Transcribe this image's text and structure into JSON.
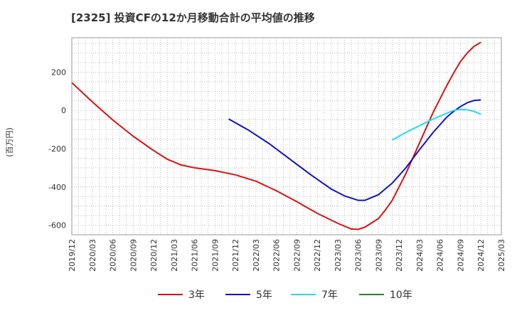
{
  "chart_data": {
    "type": "line",
    "title": "[2325]  投資CFの12か月移動合計の平均値の推移",
    "ylabel": "(百万円)",
    "xlabel": "",
    "ylim": [
      -650,
      380
    ],
    "xlim": [
      "2019/12",
      "2025/03"
    ],
    "yticks": [
      200,
      0,
      -200,
      -400,
      -600
    ],
    "xticks": [
      "2019/12",
      "2020/03",
      "2020/06",
      "2020/09",
      "2020/12",
      "2021/03",
      "2021/06",
      "2021/09",
      "2021/12",
      "2022/03",
      "2022/06",
      "2022/09",
      "2022/12",
      "2023/03",
      "2023/06",
      "2023/09",
      "2023/12",
      "2024/03",
      "2024/06",
      "2024/09",
      "2024/12",
      "2025/03"
    ],
    "grid": true,
    "legend_position": "bottom",
    "series": [
      {
        "name": "3年",
        "color": "#dd1111",
        "x": [
          "2019/12",
          "2020/03",
          "2020/06",
          "2020/09",
          "2020/12",
          "2021/02",
          "2021/04",
          "2021/06",
          "2021/09",
          "2021/12",
          "2022/03",
          "2022/06",
          "2022/09",
          "2022/12",
          "2023/03",
          "2023/05",
          "2023/06",
          "2023/07",
          "2023/09",
          "2023/10",
          "2023/11",
          "2023/12",
          "2024/01",
          "2024/03",
          "2024/05",
          "2024/06",
          "2024/07",
          "2024/08",
          "2024/09",
          "2024/10",
          "2024/11",
          "2024/12"
        ],
        "y": [
          145,
          45,
          -50,
          -135,
          -210,
          -255,
          -285,
          -300,
          -315,
          -337,
          -370,
          -420,
          -477,
          -538,
          -590,
          -620,
          -622,
          -610,
          -565,
          -520,
          -470,
          -400,
          -330,
          -170,
          -10,
          60,
          130,
          195,
          255,
          300,
          335,
          356
        ]
      },
      {
        "name": "5年",
        "color": "#1111cc",
        "x": [
          "2021/11",
          "2022/02",
          "2022/05",
          "2022/08",
          "2022/11",
          "2023/02",
          "2023/04",
          "2023/06",
          "2023/07",
          "2023/09",
          "2023/11",
          "2024/01",
          "2024/03",
          "2024/05",
          "2024/07",
          "2024/08",
          "2024/09",
          "2024/10",
          "2024/11",
          "2024/12"
        ],
        "y": [
          -45,
          -105,
          -175,
          -255,
          -335,
          -410,
          -447,
          -470,
          -470,
          -440,
          -380,
          -300,
          -205,
          -115,
          -35,
          -5,
          20,
          40,
          52,
          55
        ]
      },
      {
        "name": "7年",
        "color": "#22ddee",
        "x": [
          "2023/11",
          "2024/01",
          "2024/03",
          "2024/05",
          "2024/07",
          "2024/08",
          "2024/09",
          "2024/10",
          "2024/11",
          "2024/12"
        ],
        "y": [
          -155,
          -115,
          -80,
          -45,
          -15,
          0,
          5,
          3,
          -5,
          -20
        ]
      },
      {
        "name": "10年",
        "color": "#228822",
        "x": [],
        "y": []
      }
    ]
  }
}
